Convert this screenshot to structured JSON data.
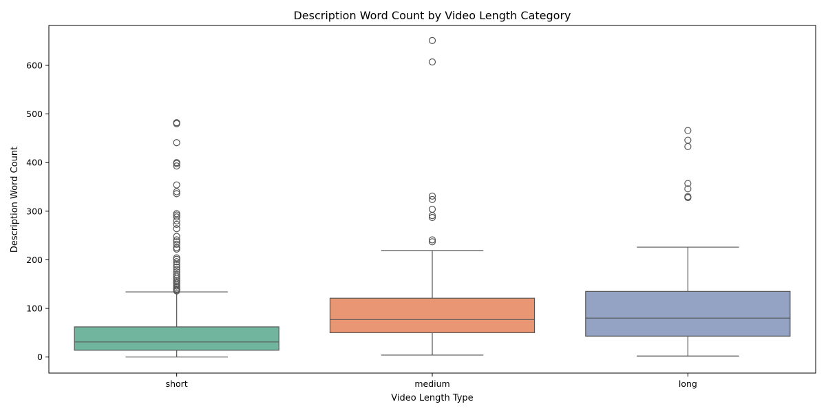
{
  "chart_data": {
    "type": "box",
    "title": "Description Word Count by Video Length Category",
    "xlabel": "Video Length Type",
    "ylabel": "Description Word Count",
    "ylim": [
      -33,
      682
    ],
    "yticks": [
      0,
      100,
      200,
      300,
      400,
      500,
      600
    ],
    "grid": false,
    "categories": [
      "short",
      "medium",
      "long"
    ],
    "boxes": [
      {
        "category": "short",
        "color": "#72b59f",
        "whisker_low": 0,
        "q1": 14,
        "median": 31,
        "q3": 62,
        "whisker_high": 134,
        "outliers": [
          136,
          138,
          140,
          143,
          146,
          149,
          152,
          155,
          158,
          162,
          166,
          170,
          175,
          180,
          185,
          190,
          196,
          201,
          204,
          222,
          225,
          232,
          237,
          241,
          248,
          264,
          273,
          280,
          288,
          292,
          295,
          336,
          340,
          354,
          393,
          398,
          400,
          441,
          480,
          482
        ]
      },
      {
        "category": "medium",
        "color": "#e99675",
        "whisker_low": 4,
        "q1": 50,
        "median": 77,
        "q3": 121,
        "whisker_high": 219,
        "outliers": [
          237,
          241,
          287,
          291,
          304,
          324,
          331,
          607,
          651
        ]
      },
      {
        "category": "long",
        "color": "#94a3c4",
        "whisker_low": 2,
        "q1": 43,
        "median": 80,
        "q3": 135,
        "whisker_high": 226,
        "outliers": [
          328,
          330,
          346,
          357,
          433,
          446,
          466
        ]
      }
    ]
  }
}
